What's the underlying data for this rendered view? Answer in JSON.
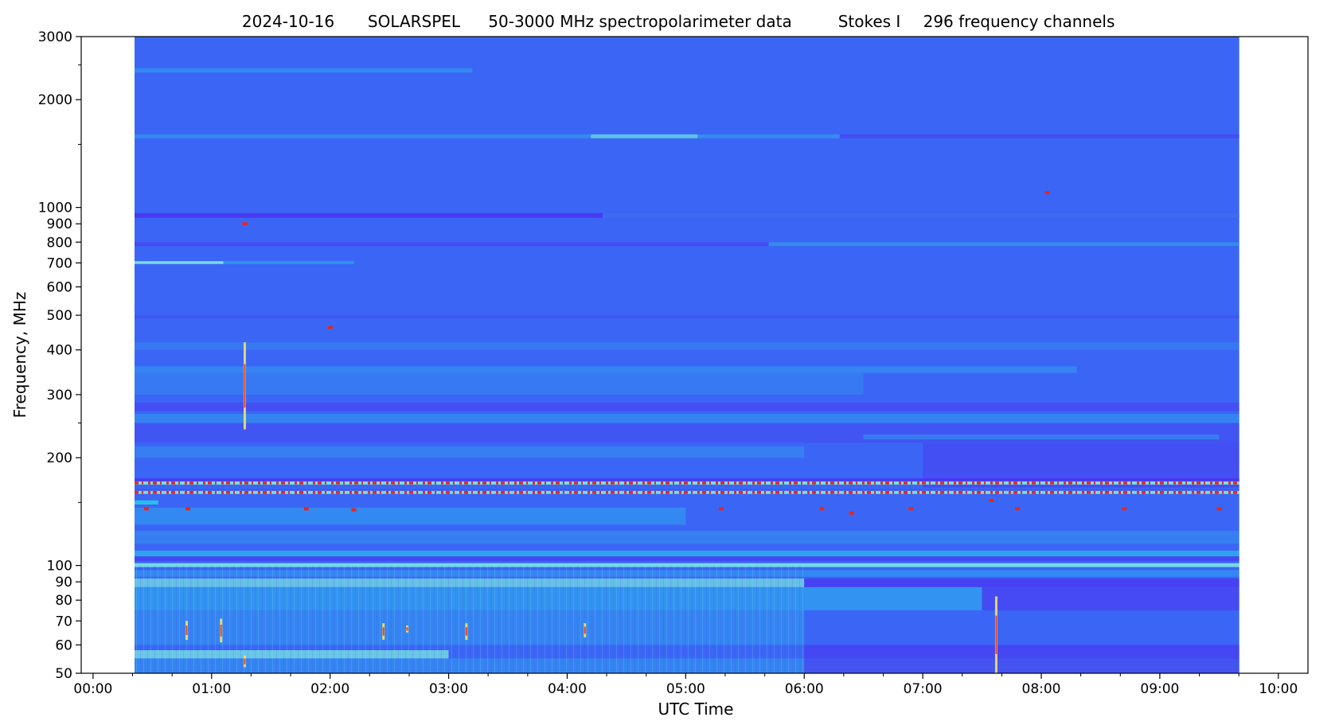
{
  "chart_data": {
    "type": "heatmap",
    "title": {
      "date": "2024-10-16",
      "instrument": "SOLARSPEL",
      "description": "50-3000 MHz spectropolarimeter data",
      "stokes": "Stokes I",
      "channels": "296 frequency channels"
    },
    "xlabel": "UTC Time",
    "ylabel": "Frequency, MHz",
    "x_scale": "time",
    "y_scale": "log",
    "xlim_hours": [
      -0.1,
      10.25
    ],
    "ylim_mhz": [
      50,
      3000
    ],
    "data_start_hours": 0.35,
    "data_end_hours": 9.67,
    "x_ticks": [
      {
        "value": 0,
        "label": "00:00"
      },
      {
        "value": 1,
        "label": "01:00"
      },
      {
        "value": 2,
        "label": "02:00"
      },
      {
        "value": 3,
        "label": "03:00"
      },
      {
        "value": 4,
        "label": "04:00"
      },
      {
        "value": 5,
        "label": "05:00"
      },
      {
        "value": 6,
        "label": "06:00"
      },
      {
        "value": 7,
        "label": "07:00"
      },
      {
        "value": 8,
        "label": "08:00"
      },
      {
        "value": 9,
        "label": "09:00"
      },
      {
        "value": 10,
        "label": "10:00"
      }
    ],
    "x_minor_ticks": [
      0.333,
      0.667,
      1.333,
      1.667,
      2.333,
      2.667,
      3.333,
      3.667,
      4.333,
      4.667,
      5.333,
      5.667,
      6.333,
      6.667,
      7.333,
      7.667,
      8.333,
      8.667,
      9.333,
      9.667
    ],
    "y_ticks": [
      {
        "value": 50,
        "label": "50"
      },
      {
        "value": 60,
        "label": "60"
      },
      {
        "value": 70,
        "label": "70"
      },
      {
        "value": 80,
        "label": "80"
      },
      {
        "value": 90,
        "label": "90"
      },
      {
        "value": 100,
        "label": "100"
      },
      {
        "value": 200,
        "label": "200"
      },
      {
        "value": 300,
        "label": "300"
      },
      {
        "value": 400,
        "label": "400"
      },
      {
        "value": 500,
        "label": "500"
      },
      {
        "value": 600,
        "label": "600"
      },
      {
        "value": 700,
        "label": "700"
      },
      {
        "value": 800,
        "label": "800"
      },
      {
        "value": 900,
        "label": "900"
      },
      {
        "value": 1000,
        "label": "1000"
      },
      {
        "value": 2000,
        "label": "2000"
      },
      {
        "value": 3000,
        "label": "3000"
      }
    ],
    "y_minor_ticks": [
      150,
      250,
      1500,
      2500
    ],
    "colormap": "rainbow",
    "colors": {
      "background": "#3b66f5",
      "deep": "#4f2df0",
      "cyan": "#28c9ea",
      "light": "#7ef0e0",
      "green": "#b6f58a",
      "yellow": "#f5e06a",
      "red": "#e8261a"
    },
    "bands": [
      {
        "f1": 2380,
        "f2": 2450,
        "t1": 0.35,
        "t2": 3.2,
        "color": "cyan",
        "opacity": 0.35
      },
      {
        "f1": 1560,
        "f2": 1600,
        "t1": 0.35,
        "t2": 9.67,
        "color": "deep",
        "opacity": 0.45
      },
      {
        "f1": 1560,
        "f2": 1600,
        "t1": 0.35,
        "t2": 6.3,
        "color": "cyan",
        "opacity": 0.5
      },
      {
        "f1": 1560,
        "f2": 1600,
        "t1": 4.2,
        "t2": 5.1,
        "color": "light",
        "opacity": 0.55
      },
      {
        "f1": 935,
        "f2": 965,
        "t1": 0.35,
        "t2": 9.67,
        "color": "deep",
        "opacity": 0.75
      },
      {
        "f1": 935,
        "f2": 965,
        "t1": 4.3,
        "t2": 9.67,
        "color": "cyan",
        "opacity": 0.35
      },
      {
        "f1": 780,
        "f2": 800,
        "t1": 0.35,
        "t2": 9.67,
        "color": "deep",
        "opacity": 0.5
      },
      {
        "f1": 780,
        "f2": 800,
        "t1": 5.7,
        "t2": 9.67,
        "color": "cyan",
        "opacity": 0.5
      },
      {
        "f1": 695,
        "f2": 708,
        "t1": 0.35,
        "t2": 1.1,
        "color": "light",
        "opacity": 0.85
      },
      {
        "f1": 695,
        "f2": 708,
        "t1": 1.1,
        "t2": 2.2,
        "color": "cyan",
        "opacity": 0.45
      },
      {
        "f1": 490,
        "f2": 500,
        "t1": 0.35,
        "t2": 9.67,
        "color": "deep",
        "opacity": 0.3
      },
      {
        "f1": 400,
        "f2": 420,
        "t1": 0.35,
        "t2": 9.67,
        "color": "cyan",
        "opacity": 0.18
      },
      {
        "f1": 345,
        "f2": 360,
        "t1": 0.35,
        "t2": 8.3,
        "color": "cyan",
        "opacity": 0.3
      },
      {
        "f1": 300,
        "f2": 345,
        "t1": 0.35,
        "t2": 6.5,
        "color": "cyan",
        "opacity": 0.2
      },
      {
        "f1": 270,
        "f2": 285,
        "t1": 0.35,
        "t2": 9.67,
        "color": "deep",
        "opacity": 0.4
      },
      {
        "f1": 250,
        "f2": 265,
        "t1": 0.35,
        "t2": 9.67,
        "color": "cyan",
        "opacity": 0.3
      },
      {
        "f1": 220,
        "f2": 250,
        "t1": 0.35,
        "t2": 9.67,
        "color": "deep",
        "opacity": 0.3
      },
      {
        "f1": 225,
        "f2": 232,
        "t1": 6.5,
        "t2": 9.5,
        "color": "cyan",
        "opacity": 0.35
      },
      {
        "f1": 165,
        "f2": 220,
        "t1": 7.0,
        "t2": 9.67,
        "color": "deep",
        "opacity": 0.4
      },
      {
        "f1": 200,
        "f2": 215,
        "t1": 0.35,
        "t2": 6.0,
        "color": "cyan",
        "opacity": 0.25
      },
      {
        "f1": 170,
        "f2": 175,
        "t1": 0.35,
        "t2": 9.67,
        "color": "deep",
        "opacity": 0.8
      },
      {
        "f1": 158,
        "f2": 163,
        "t1": 0.35,
        "t2": 9.67,
        "color": "deep",
        "opacity": 0.6
      },
      {
        "f1": 148,
        "f2": 152,
        "t1": 0.35,
        "t2": 0.55,
        "color": "cyan",
        "opacity": 0.9
      },
      {
        "f1": 130,
        "f2": 145,
        "t1": 0.35,
        "t2": 5.0,
        "color": "cyan",
        "opacity": 0.35
      },
      {
        "f1": 115,
        "f2": 125,
        "t1": 0.35,
        "t2": 9.67,
        "color": "cyan",
        "opacity": 0.25
      },
      {
        "f1": 106,
        "f2": 110,
        "t1": 0.35,
        "t2": 9.67,
        "color": "cyan",
        "opacity": 0.6
      },
      {
        "f1": 103,
        "f2": 106,
        "t1": 0.35,
        "t2": 9.67,
        "color": "deep",
        "opacity": 0.55
      },
      {
        "f1": 99,
        "f2": 101.5,
        "t1": 0.35,
        "t2": 9.67,
        "color": "light",
        "opacity": 0.85
      },
      {
        "f1": 93,
        "f2": 97,
        "t1": 0.35,
        "t2": 9.67,
        "color": "cyan",
        "opacity": 0.35
      },
      {
        "f1": 87,
        "f2": 92,
        "t1": 0.35,
        "t2": 6.0,
        "color": "light",
        "opacity": 0.65
      },
      {
        "f1": 87,
        "f2": 92,
        "t1": 6.0,
        "t2": 9.67,
        "color": "deep",
        "opacity": 0.65
      },
      {
        "f1": 75,
        "f2": 87,
        "t1": 0.35,
        "t2": 7.5,
        "color": "cyan",
        "opacity": 0.45
      },
      {
        "f1": 75,
        "f2": 87,
        "t1": 7.5,
        "t2": 9.67,
        "color": "deep",
        "opacity": 0.5
      },
      {
        "f1": 60,
        "f2": 75,
        "t1": 0.35,
        "t2": 6.0,
        "color": "cyan",
        "opacity": 0.3
      },
      {
        "f1": 55,
        "f2": 58,
        "t1": 0.35,
        "t2": 3.0,
        "color": "light",
        "opacity": 0.7
      },
      {
        "f1": 50,
        "f2": 55,
        "t1": 0.35,
        "t2": 9.67,
        "color": "cyan",
        "opacity": 0.3
      },
      {
        "f1": 50,
        "f2": 60,
        "t1": 6.0,
        "t2": 9.67,
        "color": "deep",
        "opacity": 0.55
      }
    ],
    "red_lines_mhz": [
      170,
      160
    ],
    "red_line_t1": 0.35,
    "red_line_t2": 9.67,
    "bursts": [
      {
        "t": 0.79,
        "f1": 62,
        "f2": 70
      },
      {
        "t": 1.08,
        "f1": 61,
        "f2": 71
      },
      {
        "t": 2.45,
        "f1": 62,
        "f2": 69
      },
      {
        "t": 2.65,
        "f1": 65,
        "f2": 68
      },
      {
        "t": 3.15,
        "f1": 62,
        "f2": 69
      },
      {
        "t": 4.15,
        "f1": 63,
        "f2": 69
      },
      {
        "t": 7.62,
        "f1": 50,
        "f2": 82
      },
      {
        "t": 1.28,
        "f1": 240,
        "f2": 420
      },
      {
        "t": 1.28,
        "f1": 52,
        "f2": 56
      }
    ],
    "dots": [
      {
        "t": 0.45,
        "f": 144
      },
      {
        "t": 0.8,
        "f": 144
      },
      {
        "t": 1.8,
        "f": 144
      },
      {
        "t": 2.2,
        "f": 143
      },
      {
        "t": 5.3,
        "f": 144
      },
      {
        "t": 6.15,
        "f": 144
      },
      {
        "t": 6.9,
        "f": 144
      },
      {
        "t": 7.8,
        "f": 144
      },
      {
        "t": 8.7,
        "f": 144
      },
      {
        "t": 9.5,
        "f": 144
      },
      {
        "t": 7.58,
        "f": 152
      },
      {
        "t": 1.28,
        "f": 900
      },
      {
        "t": 2.0,
        "f": 462
      },
      {
        "t": 8.05,
        "f": 1100
      },
      {
        "t": 6.4,
        "f": 140
      }
    ]
  }
}
